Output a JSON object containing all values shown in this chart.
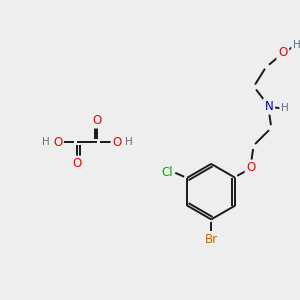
{
  "background_color": "#eeeeee",
  "atom_colors": {
    "O": "#ff0000",
    "N": "#0000cd",
    "Cl": "#00aa00",
    "Br": "#cc6600",
    "H": "#607080",
    "C": "#000000"
  },
  "bond_color": "#1a1a1a",
  "bond_lw": 1.4,
  "font_size_main": 8.5,
  "font_size_small": 7.5
}
